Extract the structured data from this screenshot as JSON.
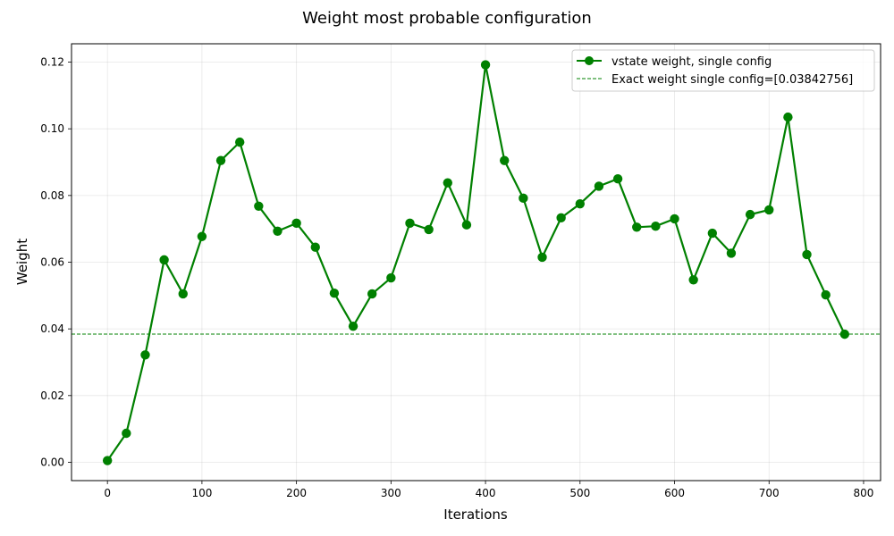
{
  "chart_data": {
    "type": "line",
    "title": "Weight most probable configuration",
    "xlabel": "Iterations",
    "ylabel": "Weight",
    "xlim": [
      -38,
      818
    ],
    "ylim": [
      -0.0055,
      0.1255
    ],
    "xticks": [
      0,
      100,
      200,
      300,
      400,
      500,
      600,
      700,
      800
    ],
    "yticks": [
      0.0,
      0.02,
      0.04,
      0.06,
      0.08,
      0.1,
      0.12
    ],
    "xtick_labels": [
      "0",
      "100",
      "200",
      "300",
      "400",
      "500",
      "600",
      "700",
      "800"
    ],
    "ytick_labels": [
      "0.00",
      "0.02",
      "0.04",
      "0.06",
      "0.08",
      "0.10",
      "0.12"
    ],
    "grid": true,
    "legend_position": "top-right",
    "series": [
      {
        "name": "vstate weight, single config",
        "color": "#008000",
        "style": "solid-with-markers",
        "x": [
          0,
          20,
          40,
          60,
          80,
          100,
          120,
          140,
          160,
          180,
          200,
          220,
          240,
          260,
          280,
          300,
          320,
          340,
          360,
          380,
          400,
          420,
          440,
          460,
          480,
          500,
          520,
          540,
          560,
          580,
          600,
          620,
          640,
          660,
          680,
          700,
          720,
          740,
          760,
          780
        ],
        "y": [
          0.0005,
          0.0087,
          0.0322,
          0.0607,
          0.0505,
          0.0677,
          0.0905,
          0.096,
          0.0768,
          0.0693,
          0.0717,
          0.0645,
          0.0507,
          0.0408,
          0.0505,
          0.0553,
          0.0717,
          0.0698,
          0.0838,
          0.0712,
          0.1192,
          0.0905,
          0.0792,
          0.0615,
          0.0733,
          0.0775,
          0.0828,
          0.085,
          0.0705,
          0.0708,
          0.073,
          0.0547,
          0.0687,
          0.0627,
          0.0743,
          0.0757,
          0.1035,
          0.0623,
          0.0502,
          0.0384
        ]
      },
      {
        "name": "Exact weight single config=[0.03842756]",
        "color": "#008000",
        "style": "dashed-horizontal",
        "y_value": 0.03842756
      }
    ]
  }
}
